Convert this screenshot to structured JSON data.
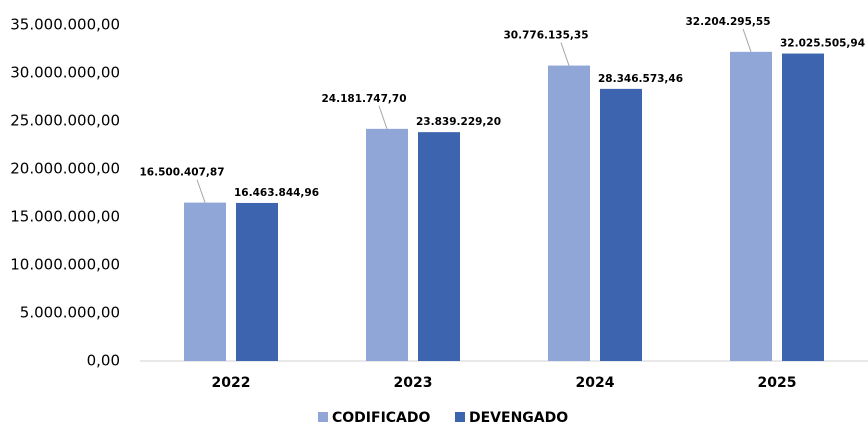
{
  "chart_data": {
    "type": "bar",
    "categories": [
      "2022",
      "2023",
      "2024",
      "2025"
    ],
    "series": [
      {
        "name": "CODIFICADO",
        "color": "#8fa6d6",
        "values": [
          16500407.87,
          24181747.7,
          30776135.35,
          32204295.55
        ],
        "value_labels": [
          "16.500.407,87",
          "24.181.747,70",
          "30.776.135,35",
          "32.204.295,55"
        ]
      },
      {
        "name": "DEVENGADO",
        "color": "#3d64ae",
        "values": [
          16463844.96,
          23839229.2,
          28346573.46,
          32025505.94
        ],
        "value_labels": [
          "16.463.844,96",
          "23.839.229,20",
          "28.346.573,46",
          "32.025.505,94"
        ]
      }
    ],
    "ylim": [
      0,
      35000000
    ],
    "yticks": [
      {
        "value": 0,
        "label": "0,00"
      },
      {
        "value": 5000000,
        "label": "5.000.000,00"
      },
      {
        "value": 10000000,
        "label": "10.000.000,00"
      },
      {
        "value": 15000000,
        "label": "15.000.000,00"
      },
      {
        "value": 20000000,
        "label": "20.000.000,00"
      },
      {
        "value": 25000000,
        "label": "25.000.000,00"
      },
      {
        "value": 30000000,
        "label": "30.000.000,00"
      },
      {
        "value": 35000000,
        "label": "35.000.000,00"
      }
    ],
    "legend": "bottom"
  }
}
